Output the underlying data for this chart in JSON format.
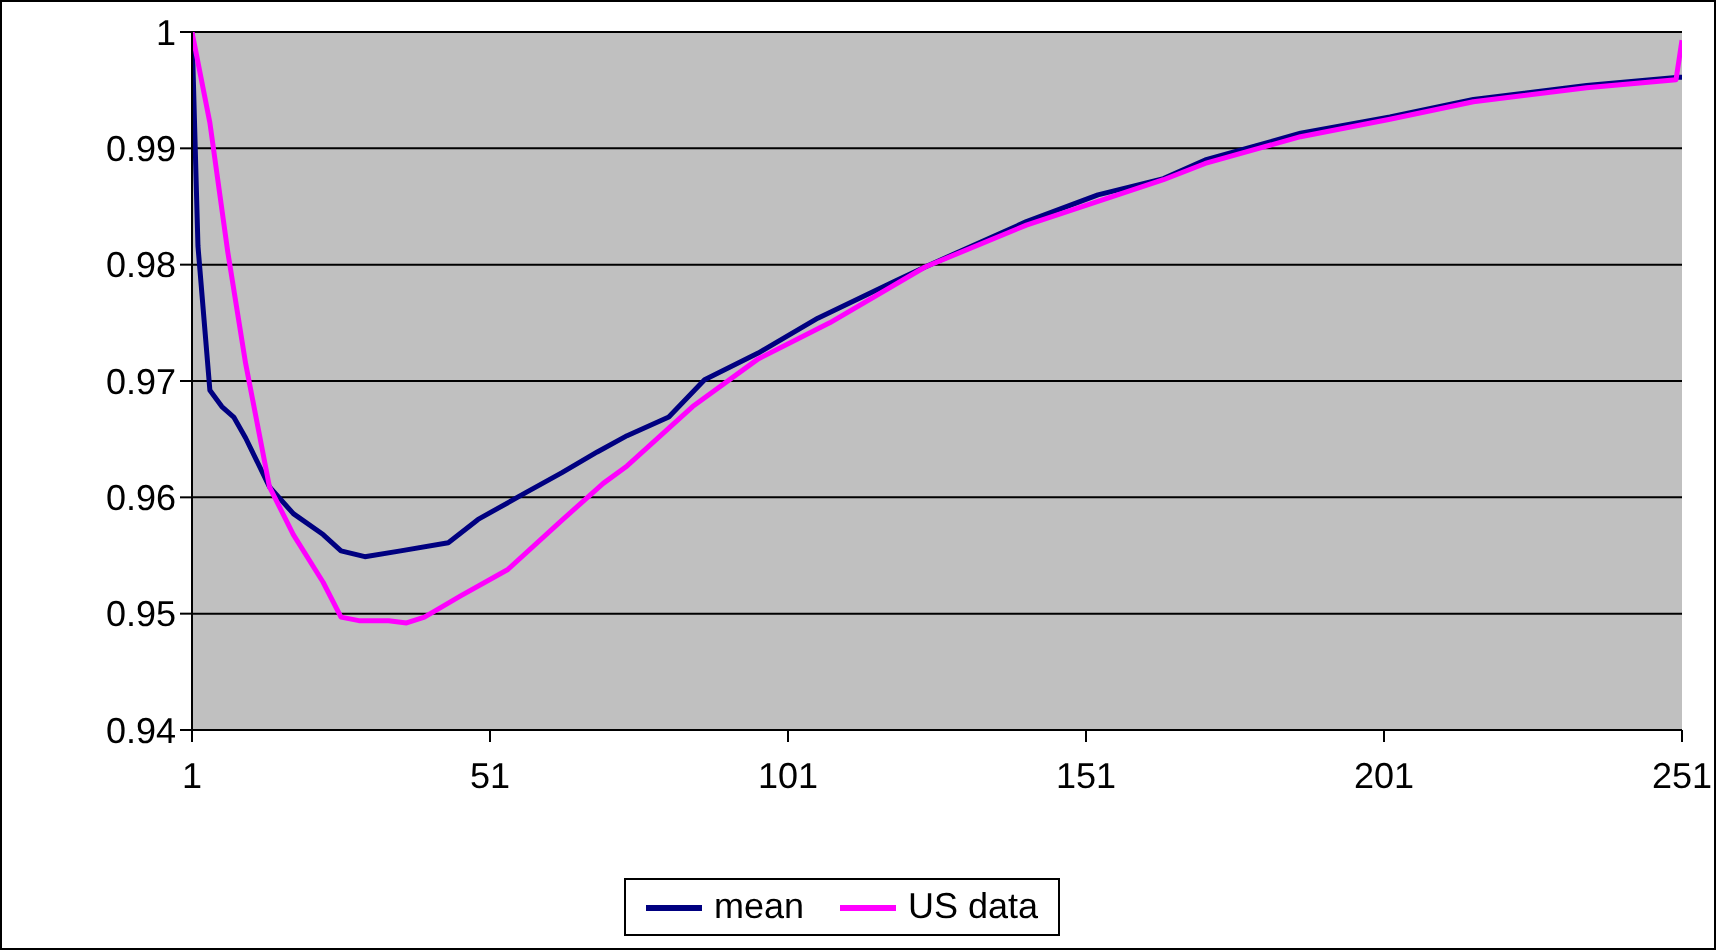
{
  "chart_data": {
    "type": "line",
    "xlim": [
      1,
      251
    ],
    "xticks": [
      1,
      51,
      101,
      151,
      201,
      251
    ],
    "ylim": [
      0.94,
      1
    ],
    "yticks": [
      0.94,
      0.95,
      0.96,
      0.97,
      0.98,
      0.99,
      1
    ],
    "grid": "y",
    "legend": "bottom",
    "marker": "none",
    "line_style": "solid",
    "series": [
      {
        "name": "mean",
        "color": "#000080",
        "x": [
          1,
          2,
          4,
          6,
          8,
          10,
          14,
          18,
          23,
          26,
          30,
          36,
          44,
          49,
          57,
          63,
          69,
          74,
          81,
          87,
          96,
          106,
          119,
          124,
          141,
          153,
          164,
          171,
          187,
          202,
          216,
          235,
          250,
          251
        ],
        "values": [
          1,
          0.9816,
          0.9692,
          0.9678,
          0.9669,
          0.9651,
          0.9609,
          0.9586,
          0.9568,
          0.9554,
          0.9549,
          0.9554,
          0.9561,
          0.9581,
          0.9604,
          0.9621,
          0.9639,
          0.9653,
          0.9669,
          0.9701,
          0.9724,
          0.9754,
          0.9786,
          0.9798,
          0.9837,
          0.986,
          0.9874,
          0.989,
          0.9913,
          0.9927,
          0.9942,
          0.9954,
          0.9961,
          0.9961
        ]
      },
      {
        "name": "US data",
        "color": "#ff00ff",
        "x": [
          1,
          4,
          7,
          10,
          14,
          18,
          23,
          26,
          29,
          34,
          37,
          40,
          46,
          54,
          63,
          70,
          74,
          85,
          96,
          108,
          124,
          141,
          164,
          171,
          187,
          202,
          216,
          235,
          250,
          251
        ],
        "values": [
          1,
          0.9922,
          0.9811,
          0.9715,
          0.9609,
          0.9568,
          0.9527,
          0.9497,
          0.9494,
          0.9494,
          0.9492,
          0.9497,
          0.9515,
          0.9538,
          0.958,
          0.9612,
          0.9627,
          0.9678,
          0.9719,
          0.975,
          0.9798,
          0.9834,
          0.9873,
          0.9887,
          0.991,
          0.9925,
          0.994,
          0.9952,
          0.9959,
          0.9993
        ]
      }
    ]
  }
}
